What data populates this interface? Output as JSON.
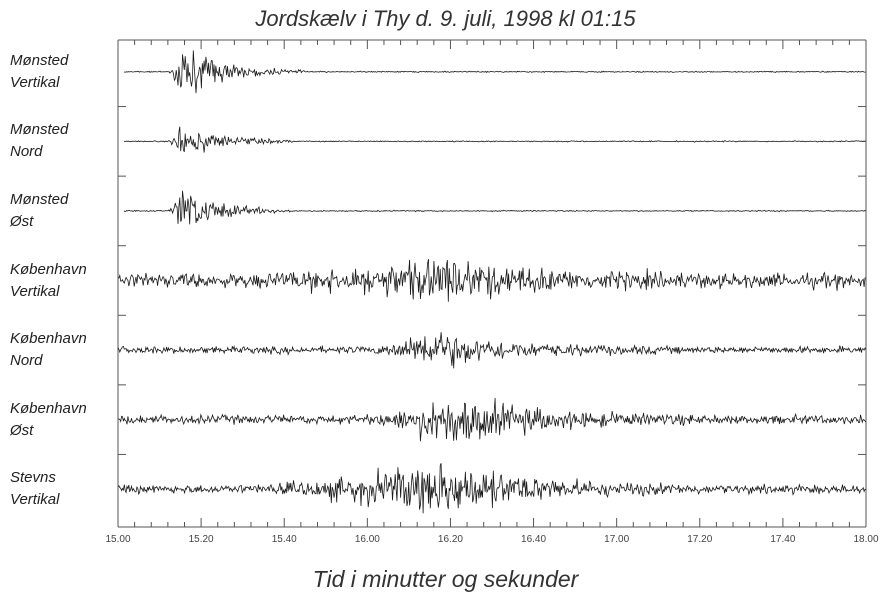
{
  "chart_data": {
    "type": "line",
    "title": "Jordskælv i Thy d. 9. juli, 1998 kl 01:15",
    "xlabel": "Tid i minutter og sekunder",
    "xlim": [
      15.0,
      18.0
    ],
    "xticks": [
      "15.00",
      "15.20",
      "15.40",
      "16.00",
      "16.20",
      "16.40",
      "17.00",
      "17.20",
      "17.40",
      "18.00"
    ],
    "grid": false,
    "series": [
      {
        "name_line1": "Mønsted",
        "name_line2": "Vertikal",
        "start": 15.0,
        "onset": 15.12,
        "peak_time": 15.15,
        "peak_amp": 1.0,
        "decay_end": 15.45,
        "coda": 0.02
      },
      {
        "name_line1": "Mønsted",
        "name_line2": "Nord",
        "start": 15.0,
        "onset": 15.12,
        "peak_time": 15.15,
        "peak_amp": 0.7,
        "decay_end": 15.42,
        "coda": 0.02
      },
      {
        "name_line1": "Mønsted",
        "name_line2": "Øst",
        "start": 15.0,
        "onset": 15.12,
        "peak_time": 15.15,
        "peak_amp": 0.9,
        "decay_end": 15.42,
        "coda": 0.02
      },
      {
        "name_line1": "København",
        "name_line2": "Vertikal",
        "start": 15.0,
        "onset": 15.28,
        "peak_time": 16.2,
        "peak_amp": 0.85,
        "decay_end": 17.2,
        "coda": 0.25
      },
      {
        "name_line1": "København",
        "name_line2": "Nord",
        "start": 15.0,
        "onset": 16.0,
        "peak_time": 16.15,
        "peak_amp": 0.75,
        "decay_end": 17.1,
        "coda": 0.12
      },
      {
        "name_line1": "København",
        "name_line2": "Øst",
        "start": 15.0,
        "onset": 15.58,
        "peak_time": 16.2,
        "peak_amp": 0.95,
        "decay_end": 17.2,
        "coda": 0.15
      },
      {
        "name_line1": "Stevns",
        "name_line2": "Vertikal",
        "start": 15.0,
        "onset": 15.3,
        "peak_time": 16.2,
        "peak_amp": 1.0,
        "decay_end": 17.2,
        "coda": 0.15
      }
    ]
  }
}
